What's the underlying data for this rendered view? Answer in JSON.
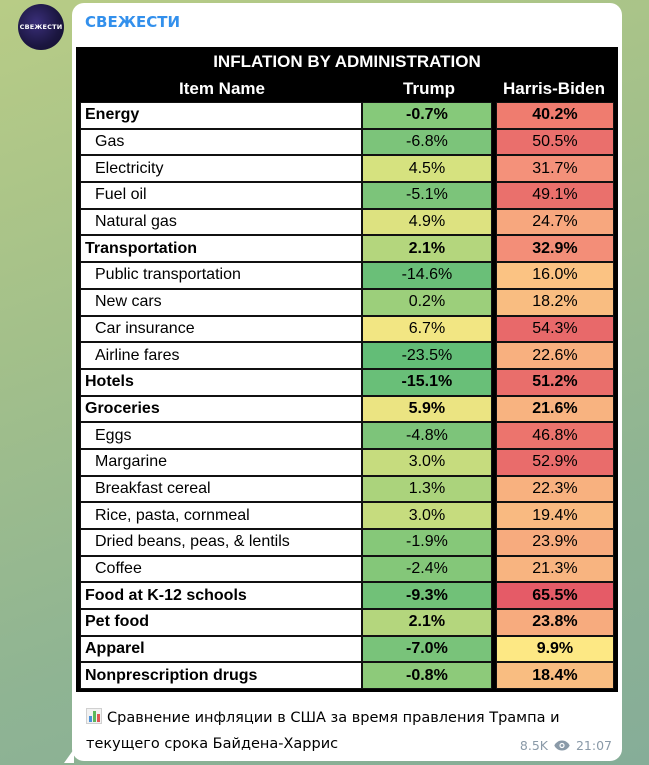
{
  "channel": {
    "name": "СВЕЖЕСТИ",
    "avatar_text": "СВЕЖЕСТИ"
  },
  "table": {
    "title": "INFLATION BY ADMINISTRATION",
    "headers": {
      "item": "Item Name",
      "trump": "Trump",
      "hb": "Harris-Biden"
    },
    "rows": [
      {
        "name": "Energy",
        "trump": "-0.7%",
        "hb": "40.2%",
        "bold": true,
        "tc": "#86c97a",
        "hc": "#ef7c6f"
      },
      {
        "name": "Gas",
        "trump": "-6.8%",
        "hb": "50.5%",
        "bold": false,
        "tc": "#7cc47a",
        "hc": "#ea6f6c"
      },
      {
        "name": "Electricity",
        "trump": "4.5%",
        "hb": "31.7%",
        "bold": false,
        "tc": "#d6e27f",
        "hc": "#f4917a"
      },
      {
        "name": "Fuel oil",
        "trump": "-5.1%",
        "hb": "49.1%",
        "bold": false,
        "tc": "#7cc47a",
        "hc": "#ea706c"
      },
      {
        "name": "Natural gas",
        "trump": "4.9%",
        "hb": "24.7%",
        "bold": false,
        "tc": "#dde280",
        "hc": "#f7a77e"
      },
      {
        "name": "Transportation",
        "trump": "2.1%",
        "hb": "32.9%",
        "bold": true,
        "tc": "#b4d67d",
        "hc": "#f38e78"
      },
      {
        "name": "Public transportation",
        "trump": "-14.6%",
        "hb": "16.0%",
        "bold": false,
        "tc": "#6abf78",
        "hc": "#fbc383"
      },
      {
        "name": "New cars",
        "trump": "0.2%",
        "hb": "18.2%",
        "bold": false,
        "tc": "#9ccf7b",
        "hc": "#f9bd81"
      },
      {
        "name": "Car insurance",
        "trump": "6.7%",
        "hb": "54.3%",
        "bold": false,
        "tc": "#f2e683",
        "hc": "#e8696a"
      },
      {
        "name": "Airline fares",
        "trump": "-23.5%",
        "hb": "22.6%",
        "bold": false,
        "tc": "#63bd77",
        "hc": "#f8b07f"
      },
      {
        "name": "Hotels",
        "trump": "-15.1%",
        "hb": "51.2%",
        "bold": true,
        "tc": "#69bf78",
        "hc": "#e96e6b"
      },
      {
        "name": "Groceries",
        "trump": "5.9%",
        "hb": "21.6%",
        "bold": true,
        "tc": "#ebe482",
        "hc": "#f8b380"
      },
      {
        "name": "Eggs",
        "trump": "-4.8%",
        "hb": "46.8%",
        "bold": false,
        "tc": "#7dc47a",
        "hc": "#ec746d"
      },
      {
        "name": "Margarine",
        "trump": "3.0%",
        "hb": "52.9%",
        "bold": false,
        "tc": "#c6dc7e",
        "hc": "#e96c6b"
      },
      {
        "name": "Breakfast cereal",
        "trump": "1.3%",
        "hb": "22.3%",
        "bold": false,
        "tc": "#abd37c",
        "hc": "#f8b17f"
      },
      {
        "name": "Rice, pasta, cornmeal",
        "trump": "3.0%",
        "hb": "19.4%",
        "bold": false,
        "tc": "#c6dc7e",
        "hc": "#f9ba81"
      },
      {
        "name": "Dried beans, peas, & lentils",
        "trump": "-1.9%",
        "hb": "23.9%",
        "bold": false,
        "tc": "#86c879",
        "hc": "#f7ab7e"
      },
      {
        "name": "Coffee",
        "trump": "-2.4%",
        "hb": "21.3%",
        "bold": false,
        "tc": "#84c779",
        "hc": "#f8b480"
      },
      {
        "name": "Food at K-12 schools",
        "trump": "-9.3%",
        "hb": "65.5%",
        "bold": true,
        "tc": "#71c178",
        "hc": "#e55b67"
      },
      {
        "name": "Pet food",
        "trump": "2.1%",
        "hb": "23.8%",
        "bold": true,
        "tc": "#b4d67d",
        "hc": "#f7ab7e"
      },
      {
        "name": "Apparel",
        "trump": "-7.0%",
        "hb": "9.9%",
        "bold": true,
        "tc": "#79c37a",
        "hc": "#fde884"
      },
      {
        "name": "Nonprescription drugs",
        "trump": "-0.8%",
        "hb": "18.4%",
        "bold": true,
        "tc": "#8dca7a",
        "hc": "#f9bd81"
      }
    ]
  },
  "caption": {
    "line1": "Сравнение инфляции в США за время правления Трампа и",
    "line2": "текущего срока Байдена-Харрис"
  },
  "meta": {
    "views": "8.5K",
    "time": "21:07"
  },
  "icons": {
    "caption_icon": "bar-chart-icon",
    "views_icon": "eye-icon"
  }
}
